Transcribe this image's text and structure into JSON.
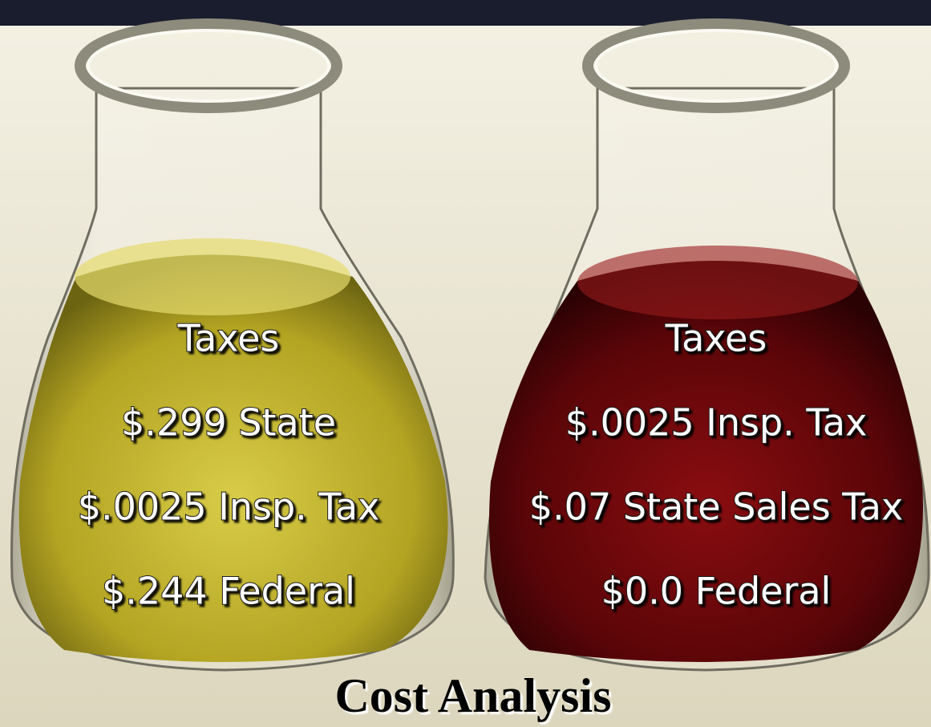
{
  "title": "Cost Analysis",
  "panels": [
    {
      "heading": "Taxes",
      "lines": [
        "$.299 State",
        "$.0025 Insp. Tax",
        "$.244 Federal"
      ]
    },
    {
      "heading": "Taxes",
      "lines": [
        "$.0025 Insp. Tax",
        "$.07 State Sales Tax",
        "$0.0 Federal"
      ]
    }
  ]
}
